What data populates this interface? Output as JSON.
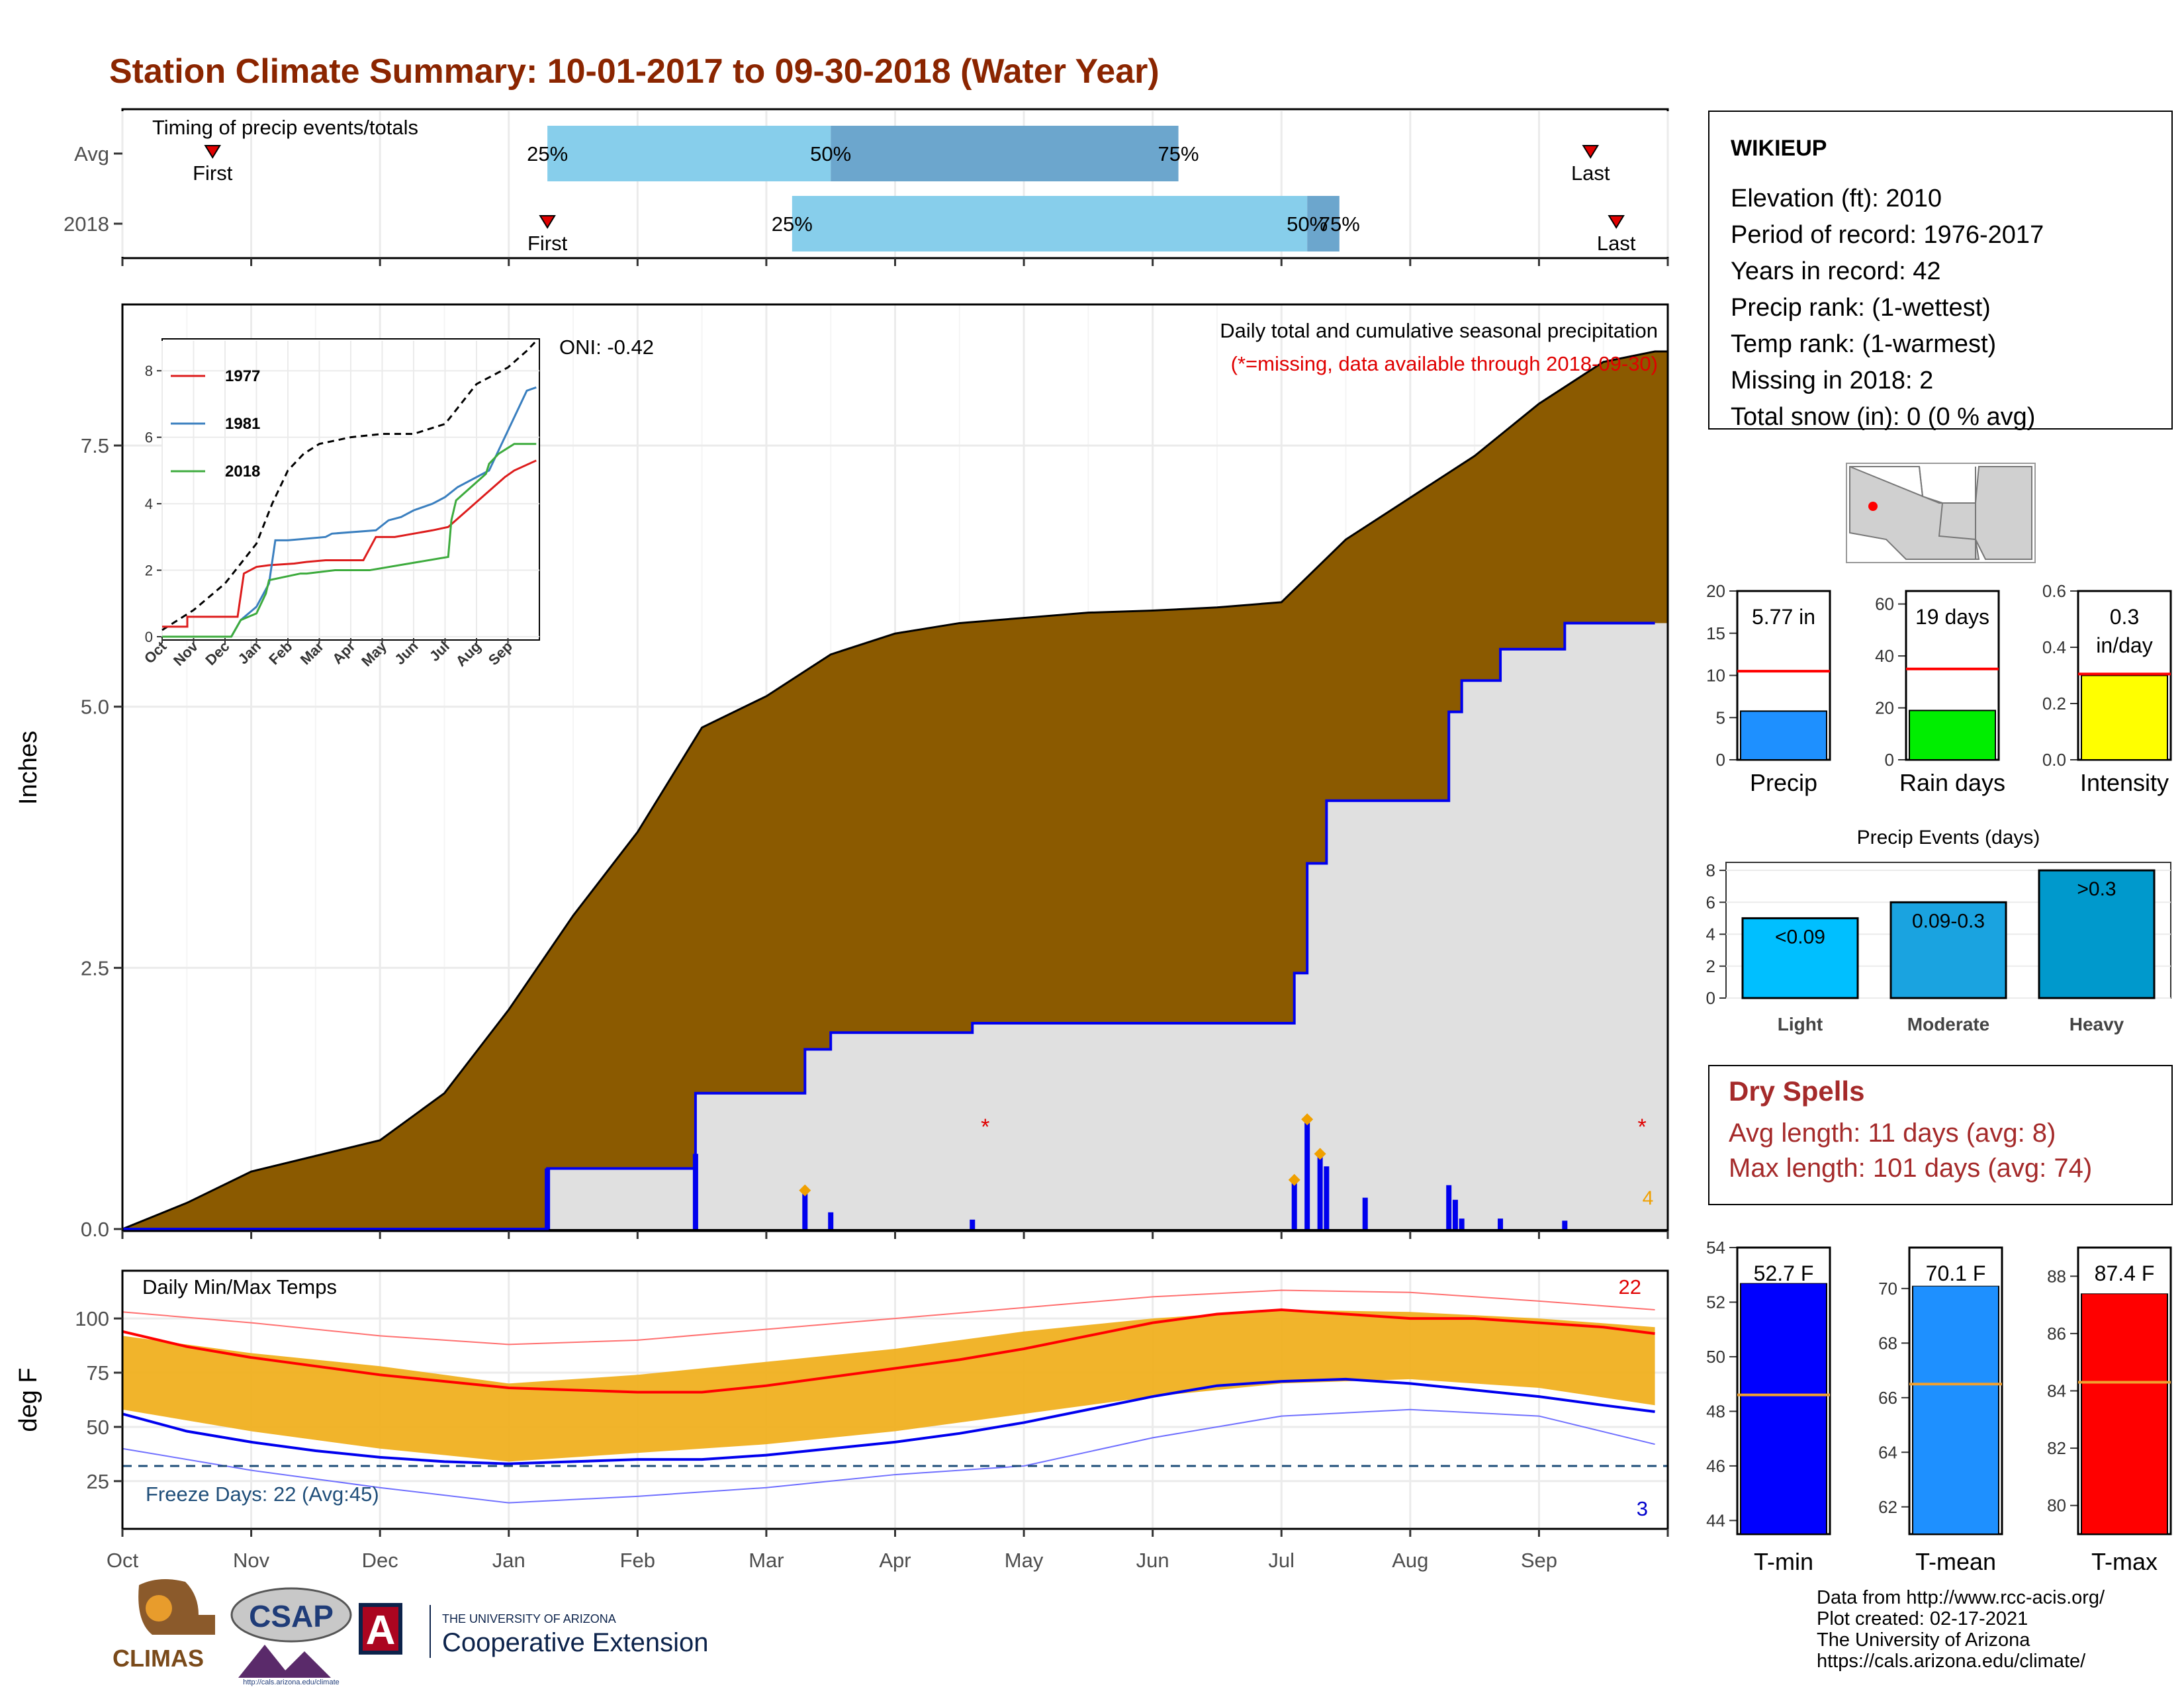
{
  "title": "Station Climate Summary: 10-01-2017 to 09-30-2018 (Water Year)",
  "months": [
    "Oct",
    "Nov",
    "Dec",
    "Jan",
    "Feb",
    "Mar",
    "Apr",
    "May",
    "Jun",
    "Jul",
    "Aug",
    "Sep"
  ],
  "timing": {
    "title": "Timing of precip events/totals",
    "rows": [
      {
        "label": "Avg",
        "first_label": "First",
        "last_label": "Last",
        "first_month": 0.7,
        "p25": 3.3,
        "p50": 5.5,
        "p75": 8.2,
        "last_month": 11.4,
        "p25_label": "25%",
        "p50_label": "50%",
        "p75_label": "75%"
      },
      {
        "label": "2018",
        "first_label": "First",
        "last_label": "Last",
        "first_month": 3.3,
        "p25": 5.2,
        "p50": 9.2,
        "p75": 9.45,
        "last_month": 11.6,
        "p25_label": "25%",
        "p50_label": "50%",
        "p75_label": "75%"
      }
    ]
  },
  "precip": {
    "ylabel": "Inches",
    "oni": "ONI: -0.42",
    "subtitle1": "Daily total and cumulative seasonal precipitation",
    "subtitle2": "(*=missing, data available through 2018-09-30)",
    "missing_count": "4",
    "yticks": [
      "0.0",
      "2.5",
      "5.0",
      "7.5"
    ],
    "avg_cumulative": {
      "x": [
        0,
        0.5,
        1,
        1.5,
        2,
        2.5,
        3,
        3.5,
        4,
        4.5,
        5,
        5.5,
        6,
        6.5,
        7,
        7.5,
        8,
        8.5,
        9,
        9.5,
        10,
        10.5,
        11,
        11.5,
        11.9
      ],
      "y": [
        0,
        0.25,
        0.55,
        0.7,
        0.85,
        1.3,
        2.1,
        3.0,
        3.8,
        4.8,
        5.1,
        5.5,
        5.7,
        5.8,
        5.85,
        5.9,
        5.92,
        5.95,
        6.0,
        6.6,
        7.0,
        7.4,
        7.9,
        8.3,
        8.4
      ]
    },
    "cum_2018": {
      "x": [
        0,
        3.3,
        3.3,
        4.45,
        4.45,
        5.3,
        5.3,
        5.5,
        5.5,
        6.6,
        6.6,
        9.1,
        9.1,
        9.2,
        9.2,
        9.35,
        9.35,
        10.3,
        10.3,
        10.4,
        10.4,
        10.7,
        10.7,
        11.2,
        11.2,
        11.9
      ],
      "y": [
        0,
        0,
        0.58,
        0.58,
        1.3,
        1.3,
        1.72,
        1.72,
        1.88,
        1.88,
        1.97,
        1.97,
        2.45,
        2.45,
        3.5,
        3.5,
        4.1,
        4.1,
        4.95,
        4.95,
        5.25,
        5.25,
        5.55,
        5.55,
        5.8,
        5.8
      ]
    },
    "daily_bars": [
      {
        "x": 3.3,
        "y": 0.58
      },
      {
        "x": 4.45,
        "y": 0.72
      },
      {
        "x": 5.3,
        "y": 0.35
      },
      {
        "x": 5.5,
        "y": 0.16
      },
      {
        "x": 6.6,
        "y": 0.09
      },
      {
        "x": 9.1,
        "y": 0.45
      },
      {
        "x": 9.2,
        "y": 1.02
      },
      {
        "x": 9.3,
        "y": 0.72
      },
      {
        "x": 9.35,
        "y": 0.6
      },
      {
        "x": 9.65,
        "y": 0.3
      },
      {
        "x": 10.3,
        "y": 0.42
      },
      {
        "x": 10.35,
        "y": 0.28
      },
      {
        "x": 10.4,
        "y": 0.1
      },
      {
        "x": 10.7,
        "y": 0.1
      },
      {
        "x": 11.2,
        "y": 0.08
      }
    ],
    "missing_x": [
      6.7,
      11.8
    ],
    "missing_y": [
      1.0,
      1.0
    ],
    "diamonds": [
      {
        "x": 5.3,
        "y": 0.37
      },
      {
        "x": 9.1,
        "y": 0.47
      },
      {
        "x": 9.2,
        "y": 1.05
      },
      {
        "x": 9.3,
        "y": 0.72
      }
    ]
  },
  "inset": {
    "series": [
      {
        "name": "1977",
        "color": "#dd1c1c",
        "x": [
          0,
          0.8,
          0.8,
          2.4,
          2.6,
          3,
          3.4,
          4.2,
          4.6,
          5.2,
          6.4,
          6.8,
          7.4,
          8,
          8.6,
          9.1,
          10.9,
          11.2,
          11.9
        ],
        "y": [
          0.3,
          0.3,
          0.6,
          0.6,
          1.9,
          2.1,
          2.15,
          2.2,
          2.25,
          2.3,
          2.3,
          3.0,
          3.0,
          3.1,
          3.2,
          3.3,
          4.8,
          5.0,
          5.3
        ]
      },
      {
        "name": "1981",
        "color": "#3a7fbf",
        "x": [
          0,
          2.2,
          2.5,
          3,
          3.4,
          3.6,
          4,
          5.2,
          5.4,
          6.8,
          7.2,
          7.6,
          8,
          8.6,
          9,
          9.4,
          10.4,
          11.6,
          11.9
        ],
        "y": [
          0,
          0,
          0.5,
          0.9,
          1.6,
          2.9,
          2.9,
          3.0,
          3.1,
          3.2,
          3.5,
          3.6,
          3.8,
          4.0,
          4.2,
          4.5,
          5.0,
          7.4,
          7.5
        ]
      },
      {
        "name": "2018",
        "color": "#3dab3d",
        "x": [
          0,
          2.2,
          2.5,
          3,
          3.3,
          3.4,
          4.4,
          4.6,
          5.5,
          6.6,
          9.1,
          9.2,
          9.35,
          10.3,
          10.4,
          10.7,
          11.2,
          11.9
        ],
        "y": [
          0,
          0,
          0.5,
          0.7,
          1.3,
          1.7,
          1.9,
          1.9,
          2.0,
          2.0,
          2.4,
          3.5,
          4.1,
          4.9,
          5.2,
          5.5,
          5.8,
          5.8
        ]
      }
    ],
    "avg": {
      "x": [
        0,
        1,
        2,
        3,
        3.5,
        4,
        4.5,
        5,
        6,
        7,
        8,
        9,
        10,
        11,
        11.6,
        11.9
      ],
      "y": [
        0.2,
        0.8,
        1.6,
        2.8,
        4.0,
        5.0,
        5.5,
        5.8,
        6.0,
        6.1,
        6.1,
        6.4,
        7.6,
        8.1,
        8.6,
        8.9
      ]
    },
    "yticks": [
      "0",
      "2",
      "4",
      "6",
      "8"
    ],
    "xticks": [
      "Oct",
      "Nov",
      "Dec",
      "Jan",
      "Feb",
      "Mar",
      "Apr",
      "May",
      "Jun",
      "Jul",
      "Aug",
      "Sep"
    ]
  },
  "temps": {
    "ylabel": "deg F",
    "title": "Daily Min/Max Temps",
    "freeze_label": "Freeze Days: 22 (Avg:45)",
    "hot_count": "22",
    "cold_count": "3",
    "yticks": [
      "25",
      "50",
      "75",
      "100"
    ],
    "freeze_line": 32,
    "avg_max": {
      "x": [
        0,
        0.5,
        1,
        1.5,
        2,
        2.5,
        3,
        3.5,
        4,
        4.5,
        5,
        5.5,
        6,
        6.5,
        7,
        7.5,
        8,
        8.5,
        9,
        9.5,
        10,
        10.5,
        11,
        11.5,
        11.9
      ],
      "y": [
        94,
        87,
        82,
        78,
        74,
        71,
        68,
        67,
        66,
        66,
        69,
        73,
        77,
        81,
        86,
        92,
        98,
        102,
        104,
        102,
        100,
        100,
        98,
        96,
        93
      ]
    },
    "avg_min": {
      "x": [
        0,
        0.5,
        1,
        1.5,
        2,
        2.5,
        3,
        3.5,
        4,
        4.5,
        5,
        5.5,
        6,
        6.5,
        7,
        7.5,
        8,
        8.5,
        9,
        9.5,
        10,
        10.5,
        11,
        11.5,
        11.9
      ],
      "y": [
        56,
        48,
        43,
        39,
        36,
        34,
        33,
        34,
        35,
        35,
        37,
        40,
        43,
        47,
        52,
        58,
        64,
        69,
        71,
        72,
        70,
        67,
        64,
        60,
        57
      ]
    },
    "rec_max": {
      "x": [
        0,
        1,
        2,
        3,
        4,
        5,
        6,
        7,
        8,
        9,
        10,
        11,
        11.9
      ],
      "y": [
        103,
        98,
        92,
        88,
        90,
        95,
        100,
        105,
        110,
        113,
        112,
        108,
        104
      ]
    },
    "rec_min": {
      "x": [
        0,
        1,
        2,
        3,
        4,
        5,
        6,
        7,
        8,
        9,
        10,
        11,
        11.9
      ],
      "y": [
        40,
        30,
        22,
        15,
        18,
        22,
        28,
        32,
        45,
        55,
        58,
        55,
        42
      ]
    },
    "band_hi": {
      "x": [
        0,
        1,
        2,
        3,
        4,
        5,
        6,
        7,
        8,
        9,
        10,
        11,
        11.9
      ],
      "y": [
        92,
        84,
        78,
        70,
        74,
        80,
        86,
        94,
        100,
        104,
        103,
        100,
        96
      ]
    },
    "band_lo": {
      "x": [
        0,
        1,
        2,
        3,
        4,
        5,
        6,
        7,
        8,
        9,
        10,
        11,
        11.9
      ],
      "y": [
        58,
        48,
        40,
        34,
        38,
        42,
        48,
        56,
        64,
        70,
        72,
        68,
        60
      ]
    }
  },
  "station": {
    "name": "WIKIEUP",
    "lines": [
      "Elevation (ft): 2010",
      "Period of record: 1976-2017",
      "Years in record: 42",
      "Precip rank:  (1-wettest)",
      "Temp rank:  (1-warmest)",
      "Missing in 2018: 2",
      "Total snow (in): 0 (0 % avg)"
    ]
  },
  "mini_bars": [
    {
      "label": "Precip",
      "value_label": "5.77 in",
      "value": 5.77,
      "avg": 10.5,
      "max": 20,
      "yticks": [
        "0",
        "5",
        "10",
        "15",
        "20"
      ],
      "color": "#1e90ff"
    },
    {
      "label": "Rain days",
      "value_label": "19 days",
      "value": 19,
      "avg": 35,
      "max": 65,
      "yticks": [
        "0",
        "20",
        "40",
        "60"
      ],
      "color": "#00ee00"
    },
    {
      "label": "Intensity",
      "value_label1": "0.3",
      "value_label2": "in/day",
      "value": 0.3,
      "avg": 0.305,
      "max": 0.6,
      "yticks": [
        "0.0",
        "0.2",
        "0.4",
        "0.6"
      ],
      "color": "#ffff00"
    }
  ],
  "events": {
    "title": "Precip Events (days)",
    "yticks": [
      "0",
      "2",
      "4",
      "6",
      "8"
    ],
    "bars": [
      {
        "category": "Light",
        "label": "<0.09",
        "value": 5,
        "color": "#00bfff"
      },
      {
        "category": "Moderate",
        "label": "0.09-0.3",
        "value": 6,
        "color": "#1aa3e0"
      },
      {
        "category": "Heavy",
        "label": ">0.3",
        "value": 8,
        "color": "#0099cc"
      }
    ]
  },
  "dry_spells": {
    "title": "Dry Spells",
    "avg_line": "Avg length: 11 days (avg: 8)",
    "max_line": "Max length: 101 days (avg: 74)"
  },
  "temp_bars": [
    {
      "label": "T-min",
      "value_label": "52.7 F",
      "value": 52.7,
      "avg": 48.6,
      "min": 43.5,
      "max": 54,
      "yticks": [
        "44",
        "46",
        "48",
        "50",
        "52",
        "54"
      ],
      "color": "#0000ff"
    },
    {
      "label": "T-mean",
      "value_label": "70.1 F",
      "value": 70.1,
      "avg": 66.5,
      "min": 61,
      "max": 71.5,
      "yticks": [
        "62",
        "64",
        "66",
        "68",
        "70"
      ],
      "color": "#1e90ff"
    },
    {
      "label": "T-max",
      "value_label": "87.4 F",
      "value": 87.4,
      "avg": 84.3,
      "min": 79,
      "max": 89,
      "yticks": [
        "80",
        "82",
        "84",
        "86",
        "88"
      ],
      "color": "#ff0000"
    }
  ],
  "footer": {
    "lines": [
      "Data from http://www.rcc-acis.org/",
      "Plot created: 02-17-2021",
      "The University of Arizona",
      "https://cals.arizona.edu/climate/"
    ],
    "climas": "CLIMAS",
    "csap": "CSAP",
    "csap_url": "http://cals.arizona.edu/climate",
    "ua_small": "THE UNIVERSITY OF ARIZONA",
    "ua_big": "Cooperative Extension",
    "ua_letter": "A"
  },
  "colors": {
    "title": "#8b2500",
    "brown": "#8b5a00",
    "cumline": "#0000ee",
    "fill2018": "#e0e0e0",
    "orange": "#f0b020",
    "dry": "#a52a2a"
  }
}
